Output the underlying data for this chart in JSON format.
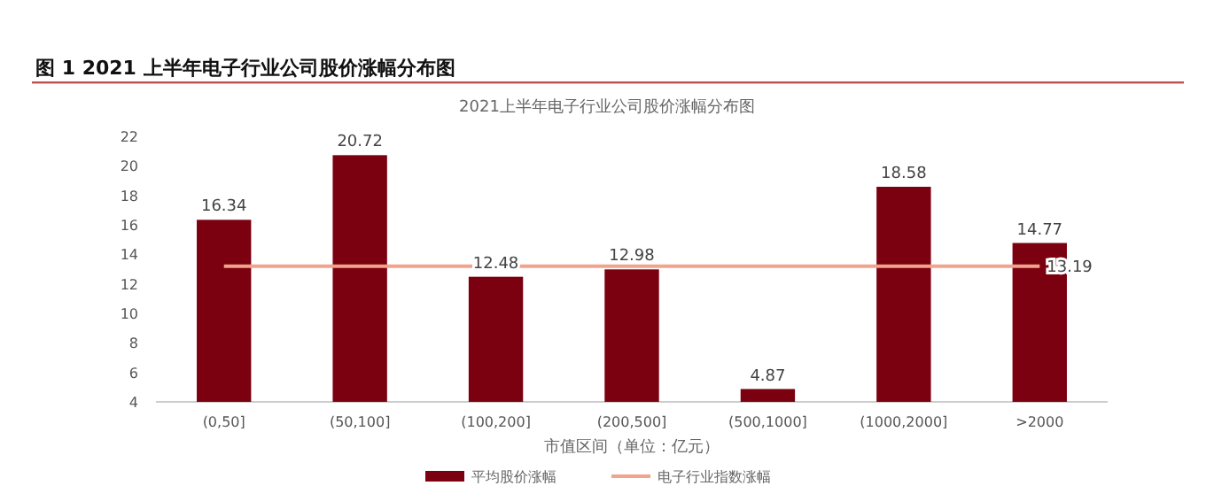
{
  "chart_data": {
    "type": "bar",
    "title": "图 1 2021 上半年电子行业公司股价涨幅分布图",
    "subtitle": "2021上半年电子行业公司股价涨幅分布图",
    "xlabel": "市值区间（单位：亿元）",
    "categories": [
      "(0,50]",
      "(50,100]",
      "(100,200]",
      "(200,500]",
      "(500,1000]",
      "(1000,2000]",
      ">2000"
    ],
    "series": [
      {
        "name": "平均股价涨幅",
        "color": "#7b0010",
        "values": [
          16.34,
          20.72,
          12.48,
          12.98,
          4.87,
          18.58,
          14.77
        ],
        "value_labels": [
          "16.34",
          "20.72",
          "12.48",
          "12.98",
          "4.87",
          "18.58",
          "14.77"
        ]
      },
      {
        "name": "电子行业指数涨幅",
        "type": "line",
        "color": "#f0a48c",
        "values": [
          13.19,
          13.19,
          13.19,
          13.19,
          13.19,
          13.19,
          13.19
        ],
        "value_labels": [
          null,
          null,
          null,
          null,
          null,
          null,
          "13.19"
        ]
      }
    ],
    "ylim": [
      4,
      22
    ],
    "yticks": [
      4,
      6,
      8,
      10,
      12,
      14,
      16,
      18,
      20,
      22
    ],
    "grid": false,
    "legend": "bottom",
    "marker": "none",
    "line_style": "solid"
  }
}
